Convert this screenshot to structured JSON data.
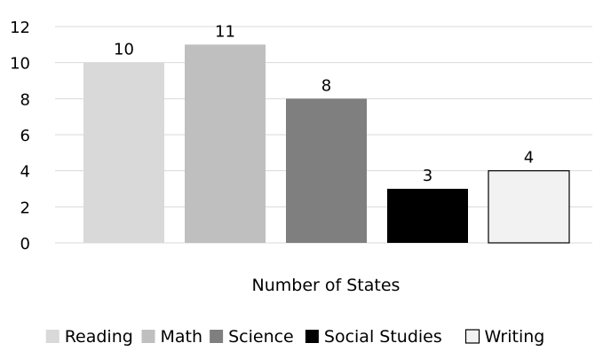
{
  "chart_data": {
    "type": "bar",
    "title": "",
    "xlabel": "Number of States",
    "ylabel": "",
    "ylim": [
      0,
      12
    ],
    "yticks": [
      0,
      2,
      4,
      6,
      8,
      10,
      12
    ],
    "grid": true,
    "legend_position": "bottom",
    "categories": [
      "Number of States"
    ],
    "series": [
      {
        "name": "Reading",
        "values": [
          10
        ],
        "color": "#d9d9d9"
      },
      {
        "name": "Math",
        "values": [
          11
        ],
        "color": "#bfbfbf"
      },
      {
        "name": "Science",
        "values": [
          8
        ],
        "color": "#7f7f7f"
      },
      {
        "name": "Social Studies",
        "values": [
          3
        ],
        "color": "#000000"
      },
      {
        "name": "Writing",
        "values": [
          4
        ],
        "color": "#f2f2f2"
      }
    ]
  }
}
